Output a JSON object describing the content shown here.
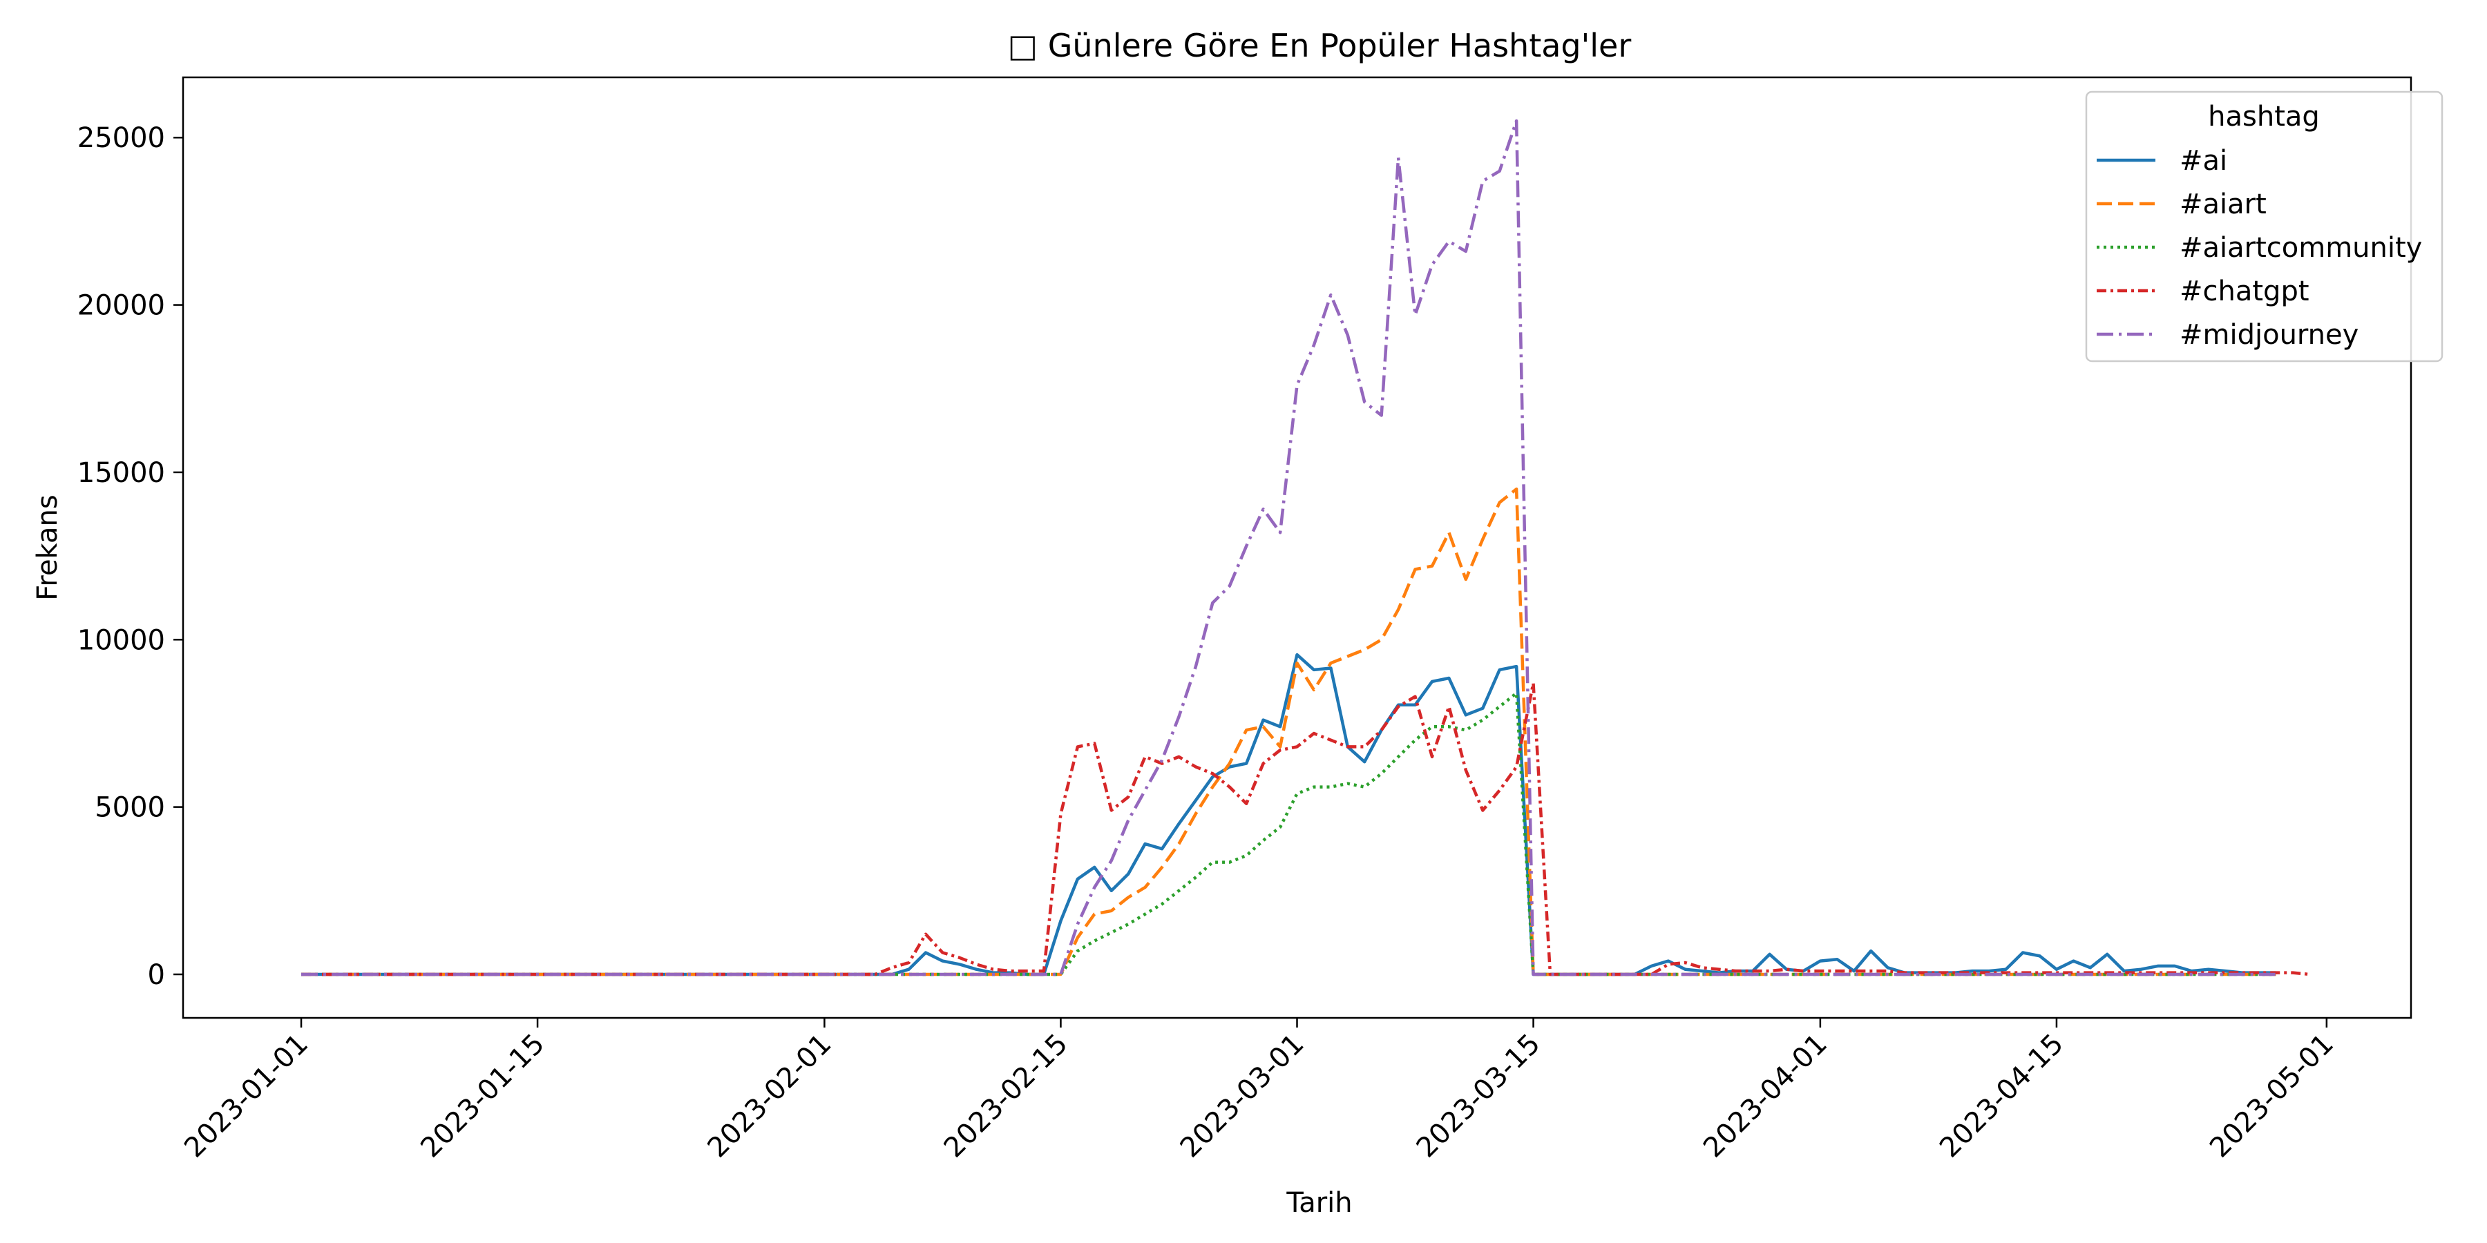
{
  "chart_data": {
    "type": "line",
    "title": "□ Günlere Göre En Popüler Hashtag'ler",
    "xlabel": "Tarih",
    "ylabel": "Frekans",
    "x_start": "2023-01-01",
    "x_end": "2023-04-29",
    "xlim": [
      "2022-12-25",
      "2023-05-06"
    ],
    "ylim": [
      -1300,
      26800
    ],
    "x_ticks": [
      "2023-01-01",
      "2023-01-15",
      "2023-02-01",
      "2023-02-15",
      "2023-03-01",
      "2023-03-15",
      "2023-04-01",
      "2023-04-15",
      "2023-05-01"
    ],
    "y_ticks": [
      0,
      5000,
      10000,
      15000,
      20000,
      25000
    ],
    "grid": false,
    "legend": {
      "title": "hashtag",
      "placement": "top-right"
    },
    "series": [
      {
        "name": "#ai",
        "color": "#1f77b4",
        "dash": "solid",
        "values": [
          0,
          0,
          0,
          0,
          0,
          0,
          0,
          0,
          0,
          0,
          0,
          0,
          0,
          0,
          0,
          0,
          0,
          0,
          0,
          0,
          0,
          0,
          0,
          0,
          0,
          0,
          0,
          0,
          0,
          0,
          0,
          0,
          0,
          0,
          0,
          0,
          150,
          650,
          400,
          300,
          150,
          50,
          50,
          0,
          0,
          1600,
          2850,
          3200,
          2500,
          3000,
          3900,
          3750,
          4500,
          5200,
          5900,
          6200,
          6300,
          7600,
          7400,
          9550,
          9100,
          9150,
          6800,
          6350,
          7300,
          8050,
          8050,
          8750,
          8850,
          7750,
          7950,
          9100,
          9200,
          0,
          0,
          0,
          0,
          0,
          0,
          0,
          250,
          400,
          150,
          100,
          50,
          100,
          100,
          600,
          150,
          100,
          400,
          450,
          100,
          700,
          200,
          50,
          50,
          50,
          50,
          100,
          100,
          150,
          650,
          550,
          150,
          400,
          200,
          600,
          100,
          150,
          250,
          250,
          100,
          150,
          100,
          50,
          50,
          50
        ]
      },
      {
        "name": "#aiart",
        "color": "#ff7f0e",
        "dash": "dashed",
        "values": [
          0,
          0,
          0,
          0,
          0,
          0,
          0,
          0,
          0,
          0,
          0,
          0,
          0,
          0,
          0,
          0,
          0,
          0,
          0,
          0,
          0,
          0,
          0,
          0,
          0,
          0,
          0,
          0,
          0,
          0,
          0,
          0,
          0,
          0,
          0,
          0,
          0,
          0,
          0,
          0,
          0,
          0,
          0,
          0,
          0,
          0,
          1100,
          1800,
          1900,
          2300,
          2600,
          3200,
          3900,
          4800,
          5600,
          6300,
          7300,
          7400,
          6800,
          9300,
          8500,
          9300,
          9500,
          9700,
          10000,
          10900,
          12100,
          12200,
          13200,
          11800,
          13000,
          14100,
          14500,
          0,
          0,
          0,
          0,
          0,
          0,
          0,
          0,
          0,
          0,
          0,
          0,
          0,
          0,
          0,
          0,
          0,
          0,
          0,
          0,
          0,
          0,
          0,
          0,
          0,
          0,
          0,
          0,
          0,
          0,
          0,
          0,
          0,
          0,
          0,
          0,
          0,
          0,
          0,
          0,
          0,
          0,
          0,
          0,
          0
        ]
      },
      {
        "name": "#aiartcommunity",
        "color": "#2ca02c",
        "dash": "dotted",
        "values": [
          0,
          0,
          0,
          0,
          0,
          0,
          0,
          0,
          0,
          0,
          0,
          0,
          0,
          0,
          0,
          0,
          0,
          0,
          0,
          0,
          0,
          0,
          0,
          0,
          0,
          0,
          0,
          0,
          0,
          0,
          0,
          0,
          0,
          0,
          0,
          0,
          0,
          0,
          0,
          0,
          0,
          0,
          0,
          0,
          0,
          0,
          700,
          1000,
          1250,
          1500,
          1800,
          2100,
          2500,
          2900,
          3350,
          3350,
          3550,
          4000,
          4400,
          5400,
          5600,
          5600,
          5700,
          5600,
          6000,
          6500,
          7000,
          7400,
          7400,
          7300,
          7600,
          8000,
          8400,
          0,
          0,
          0,
          0,
          0,
          0,
          0,
          0,
          0,
          0,
          0,
          0,
          0,
          0,
          0,
          0,
          0,
          0,
          0,
          0,
          0,
          0,
          0,
          0,
          0,
          0,
          0,
          0,
          0,
          0,
          0,
          0,
          0,
          0,
          0,
          0,
          0,
          0,
          0,
          0,
          0,
          0,
          0,
          0,
          0
        ]
      },
      {
        "name": "#chatgpt",
        "color": "#d62728",
        "dash": "dashdot-short",
        "values": [
          0,
          0,
          0,
          0,
          0,
          0,
          0,
          0,
          0,
          0,
          0,
          0,
          0,
          0,
          0,
          0,
          0,
          0,
          0,
          0,
          0,
          0,
          0,
          0,
          0,
          0,
          0,
          0,
          0,
          0,
          0,
          0,
          0,
          0,
          0,
          200,
          350,
          1200,
          650,
          500,
          300,
          150,
          100,
          100,
          100,
          4800,
          6800,
          6900,
          4900,
          5300,
          6500,
          6300,
          6500,
          6200,
          6000,
          5600,
          5100,
          6300,
          6700,
          6800,
          7200,
          7000,
          6800,
          6800,
          7300,
          8000,
          8300,
          6500,
          8000,
          6100,
          4900,
          5500,
          6200,
          8700,
          0,
          0,
          0,
          0,
          0,
          0,
          0,
          300,
          350,
          200,
          150,
          100,
          100,
          100,
          150,
          100,
          100,
          100,
          100,
          100,
          100,
          50,
          50,
          50,
          50,
          50,
          50,
          50,
          50,
          50,
          50,
          50,
          50,
          50,
          50,
          50,
          50,
          50,
          50,
          50,
          50,
          50,
          50,
          50,
          50,
          0
        ]
      },
      {
        "name": "#midjourney",
        "color": "#9467bd",
        "dash": "dashdot",
        "values": [
          0,
          0,
          0,
          0,
          0,
          0,
          0,
          0,
          0,
          0,
          0,
          0,
          0,
          0,
          0,
          0,
          0,
          0,
          0,
          0,
          0,
          0,
          0,
          0,
          0,
          0,
          0,
          0,
          0,
          0,
          0,
          0,
          0,
          0,
          0,
          0,
          0,
          0,
          0,
          0,
          0,
          0,
          0,
          0,
          0,
          0,
          1500,
          2600,
          3400,
          4600,
          5500,
          6400,
          7700,
          9200,
          11100,
          11600,
          12800,
          13900,
          13200,
          17600,
          18800,
          20300,
          19100,
          17100,
          16700,
          24400,
          19700,
          21200,
          21900,
          21600,
          23700,
          24000,
          25500,
          0,
          0,
          0,
          0,
          0,
          0,
          0,
          0,
          0,
          0,
          0,
          0,
          0,
          0,
          0,
          0,
          0,
          0,
          0,
          0,
          0,
          0,
          0,
          0,
          0,
          0,
          0,
          0,
          0,
          0,
          0,
          0,
          0,
          0,
          0,
          0,
          0,
          0,
          0,
          0,
          0,
          0,
          0,
          0,
          0
        ]
      }
    ]
  }
}
